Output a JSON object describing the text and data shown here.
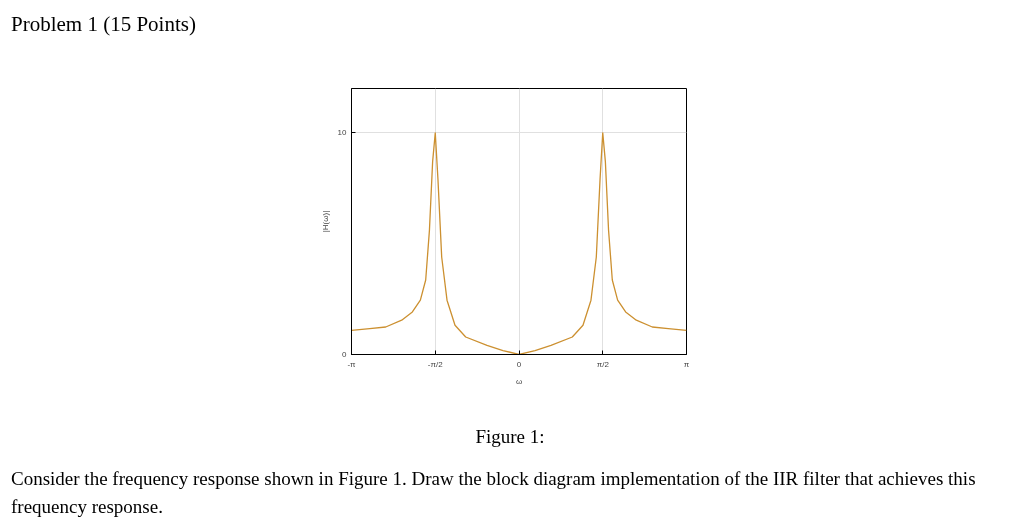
{
  "chart_data": {
    "type": "line",
    "title": "Problem 1 (15 Points)",
    "xlabel": "ω",
    "ylabel": "|H(ω)|",
    "annotations": [
      "Figure 1:",
      "Consider the frequency response shown in Figure 1. Draw the block diagram implementation of the IIR filter that achieves this frequency response."
    ],
    "x": [
      -3.1416,
      -2.8,
      -2.5,
      -2.2,
      -2.0,
      -1.85,
      -1.75,
      -1.68,
      -1.62,
      -1.5708,
      -1.52,
      -1.45,
      -1.35,
      -1.2,
      -1.0,
      -0.6,
      -0.3,
      0,
      0.3,
      0.6,
      1.0,
      1.2,
      1.35,
      1.45,
      1.52,
      1.5708,
      1.62,
      1.68,
      1.75,
      1.85,
      2.0,
      2.2,
      2.5,
      2.8,
      3.1416
    ],
    "series": [
      {
        "color": "#cc9030",
        "values": [
          1.09,
          1.17,
          1.24,
          1.55,
          1.92,
          2.45,
          3.36,
          5.6,
          8.7,
          10,
          7.9,
          4.4,
          2.45,
          1.32,
          0.79,
          0.41,
          0.18,
          0,
          0.18,
          0.41,
          0.79,
          1.32,
          2.45,
          4.4,
          7.9,
          10,
          8.7,
          5.6,
          3.36,
          2.45,
          1.92,
          1.55,
          1.24,
          1.17,
          1.09
        ]
      }
    ],
    "xlim": [
      -3.1416,
      3.1416
    ],
    "ylim": [
      0,
      12
    ],
    "xticks": [
      {
        "value": -3.1416,
        "label": "-π"
      },
      {
        "value": -1.5708,
        "label": "-π/2"
      },
      0,
      {
        "value": 1.5708,
        "label": "π/2"
      },
      {
        "value": 3.1416,
        "label": "π"
      }
    ],
    "yticks": [
      0,
      10
    ],
    "grid": true,
    "marker": "none",
    "line_style": "solid"
  }
}
